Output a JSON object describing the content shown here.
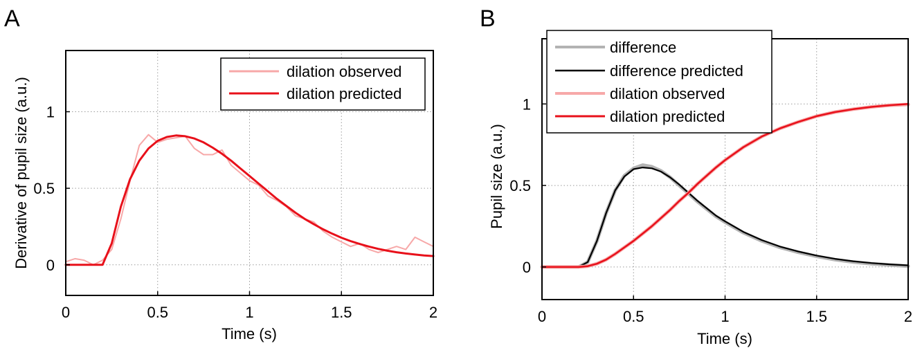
{
  "panels": [
    {
      "letter": "A"
    },
    {
      "letter": "B"
    }
  ],
  "chart_data": [
    {
      "type": "line",
      "xlabel": "Time (s)",
      "ylabel": "Derivative of pupil size (a.u.)",
      "xlim": [
        0,
        2
      ],
      "ylim": [
        -0.2,
        1.4
      ],
      "xticks": [
        "0",
        "0.5",
        "1",
        "1.5",
        "2"
      ],
      "yticks": [
        "0",
        "0.5",
        "1"
      ],
      "grid": true,
      "legend_position": "top-right",
      "colors": {
        "observed": "#f7a8a8",
        "predicted": "#e8101a"
      },
      "series": [
        {
          "name": "dilation observed",
          "x": [
            0,
            0.05,
            0.1,
            0.15,
            0.2,
            0.25,
            0.3,
            0.35,
            0.4,
            0.45,
            0.5,
            0.55,
            0.6,
            0.65,
            0.7,
            0.75,
            0.8,
            0.85,
            0.9,
            0.95,
            1.0,
            1.05,
            1.1,
            1.15,
            1.2,
            1.25,
            1.3,
            1.35,
            1.4,
            1.45,
            1.5,
            1.55,
            1.6,
            1.65,
            1.7,
            1.75,
            1.8,
            1.85,
            1.9,
            1.95,
            2.0
          ],
          "y": [
            0.02,
            0.04,
            0.03,
            0.0,
            0.03,
            0.1,
            0.3,
            0.55,
            0.78,
            0.85,
            0.8,
            0.82,
            0.83,
            0.84,
            0.76,
            0.72,
            0.72,
            0.75,
            0.65,
            0.6,
            0.55,
            0.52,
            0.45,
            0.42,
            0.38,
            0.32,
            0.3,
            0.28,
            0.22,
            0.18,
            0.15,
            0.12,
            0.14,
            0.1,
            0.08,
            0.1,
            0.12,
            0.1,
            0.18,
            0.15,
            0.12
          ]
        },
        {
          "name": "dilation predicted",
          "x": [
            0,
            0.2,
            0.25,
            0.3,
            0.35,
            0.4,
            0.45,
            0.5,
            0.55,
            0.6,
            0.65,
            0.7,
            0.75,
            0.8,
            0.85,
            0.9,
            0.95,
            1.0,
            1.05,
            1.1,
            1.15,
            1.2,
            1.25,
            1.3,
            1.35,
            1.4,
            1.45,
            1.5,
            1.55,
            1.6,
            1.65,
            1.7,
            1.75,
            1.8,
            1.85,
            1.9,
            1.95,
            2.0
          ],
          "y": [
            0,
            0,
            0.14,
            0.38,
            0.56,
            0.68,
            0.76,
            0.81,
            0.835,
            0.845,
            0.84,
            0.825,
            0.8,
            0.765,
            0.725,
            0.68,
            0.63,
            0.58,
            0.53,
            0.48,
            0.43,
            0.385,
            0.34,
            0.3,
            0.265,
            0.232,
            0.203,
            0.177,
            0.155,
            0.136,
            0.119,
            0.104,
            0.092,
            0.082,
            0.074,
            0.067,
            0.061,
            0.057
          ]
        }
      ]
    },
    {
      "type": "line",
      "xlabel": "Time (s)",
      "ylabel": "Pupil size (a.u.)",
      "xlim": [
        0,
        2
      ],
      "ylim": [
        -0.2,
        1.4
      ],
      "xticks": [
        "0",
        "0.5",
        "1",
        "1.5",
        "2"
      ],
      "yticks": [
        "0",
        "0.5",
        "1"
      ],
      "grid": true,
      "legend_position": "top-left",
      "colors": {
        "difference": "#b3b3b3",
        "difference_predicted": "#000000",
        "observed": "#f7a8a8",
        "predicted": "#e8101a"
      },
      "series": [
        {
          "name": "difference",
          "x": [
            0,
            0.2,
            0.25,
            0.3,
            0.35,
            0.4,
            0.45,
            0.5,
            0.55,
            0.6,
            0.65,
            0.7,
            0.75,
            0.8,
            0.85,
            0.9,
            0.95,
            1.0,
            1.1,
            1.2,
            1.3,
            1.4,
            1.5,
            1.6,
            1.7,
            1.8,
            1.9,
            2.0
          ],
          "y": [
            0,
            0,
            0.03,
            0.16,
            0.33,
            0.47,
            0.56,
            0.605,
            0.625,
            0.615,
            0.59,
            0.55,
            0.5,
            0.45,
            0.4,
            0.355,
            0.31,
            0.275,
            0.21,
            0.16,
            0.12,
            0.09,
            0.065,
            0.045,
            0.03,
            0.02,
            0.012,
            0.005
          ]
        },
        {
          "name": "difference predicted",
          "x": [
            0,
            0.2,
            0.25,
            0.3,
            0.35,
            0.4,
            0.45,
            0.5,
            0.55,
            0.6,
            0.65,
            0.7,
            0.75,
            0.8,
            0.85,
            0.9,
            0.95,
            1.0,
            1.1,
            1.2,
            1.3,
            1.4,
            1.5,
            1.6,
            1.7,
            1.8,
            1.9,
            2.0
          ],
          "y": [
            0,
            0,
            0.03,
            0.16,
            0.33,
            0.47,
            0.555,
            0.6,
            0.61,
            0.605,
            0.585,
            0.55,
            0.505,
            0.455,
            0.405,
            0.36,
            0.315,
            0.28,
            0.215,
            0.165,
            0.125,
            0.095,
            0.07,
            0.05,
            0.035,
            0.024,
            0.016,
            0.01
          ]
        },
        {
          "name": "dilation observed",
          "x": [
            0,
            0.2,
            0.25,
            0.3,
            0.35,
            0.4,
            0.45,
            0.5,
            0.55,
            0.6,
            0.65,
            0.7,
            0.75,
            0.8,
            0.85,
            0.9,
            0.95,
            1.0,
            1.1,
            1.2,
            1.3,
            1.4,
            1.5,
            1.6,
            1.7,
            1.8,
            1.9,
            2.0
          ],
          "y": [
            0,
            0,
            0.005,
            0.02,
            0.045,
            0.08,
            0.12,
            0.16,
            0.205,
            0.25,
            0.3,
            0.35,
            0.405,
            0.455,
            0.51,
            0.56,
            0.61,
            0.655,
            0.735,
            0.8,
            0.85,
            0.89,
            0.925,
            0.95,
            0.968,
            0.982,
            0.992,
            0.997
          ]
        },
        {
          "name": "dilation predicted",
          "x": [
            0,
            0.2,
            0.25,
            0.3,
            0.35,
            0.4,
            0.45,
            0.5,
            0.55,
            0.6,
            0.65,
            0.7,
            0.75,
            0.8,
            0.85,
            0.9,
            0.95,
            1.0,
            1.1,
            1.2,
            1.3,
            1.4,
            1.5,
            1.6,
            1.7,
            1.8,
            1.9,
            2.0
          ],
          "y": [
            0,
            0,
            0.005,
            0.02,
            0.045,
            0.08,
            0.12,
            0.16,
            0.205,
            0.25,
            0.3,
            0.35,
            0.405,
            0.455,
            0.51,
            0.56,
            0.61,
            0.655,
            0.735,
            0.8,
            0.85,
            0.89,
            0.925,
            0.95,
            0.968,
            0.982,
            0.992,
            1.0
          ]
        }
      ]
    }
  ]
}
